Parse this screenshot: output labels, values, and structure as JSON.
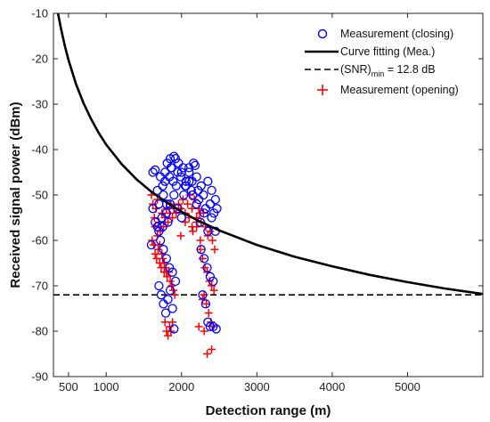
{
  "chart_data": {
    "type": "scatter",
    "xlabel": "Detection range (m)",
    "ylabel": "Received signal power (dBm)",
    "xlim": [
      300,
      6000
    ],
    "ylim": [
      -90,
      -10
    ],
    "xticks": [
      500,
      1000,
      2000,
      3000,
      4000,
      5000
    ],
    "yticks": [
      -10,
      -20,
      -30,
      -40,
      -50,
      -60,
      -70,
      -80,
      -90
    ],
    "legend_position": "top-right",
    "legend": [
      {
        "key": "closing",
        "label": "Measurement (closing)",
        "marker": "circle",
        "color": "#0000ff"
      },
      {
        "key": "fit",
        "label": "Curve fitting (Mea.)",
        "line": "solid",
        "color": "#000000"
      },
      {
        "key": "snr",
        "label_main": "(SNR)",
        "label_sub": "min",
        "label_rest": " = 12.8 dB",
        "line": "dashed",
        "color": "#000000"
      },
      {
        "key": "opening",
        "label": "Measurement (opening)",
        "marker": "plus",
        "color": "#ff0000"
      }
    ],
    "series": {
      "curve_fit": {
        "x": [
          360,
          400,
          450,
          500,
          600,
          700,
          800,
          900,
          1000,
          1200,
          1400,
          1600,
          1800,
          2000,
          2200,
          2500,
          3000,
          3500,
          4000,
          4500,
          5000,
          5500,
          6000
        ],
        "y": [
          -10,
          -13.4,
          -17.1,
          -20.3,
          -25.6,
          -29.8,
          -33.3,
          -36.3,
          -38.9,
          -43.1,
          -46.5,
          -49.3,
          -51.6,
          -53.7,
          -55.5,
          -57.8,
          -61.0,
          -63.6,
          -65.7,
          -67.6,
          -69.2,
          -70.6,
          -71.8
        ]
      },
      "snr_min": {
        "y": -72
      },
      "closing": {
        "x": [
          1600,
          1620,
          1650,
          1680,
          1700,
          1720,
          1740,
          1760,
          1780,
          1800,
          1820,
          1850,
          1870,
          1900,
          1930,
          1960,
          2000,
          2030,
          2060,
          2100,
          2130,
          2160,
          2200,
          2230,
          2260,
          2290,
          2320,
          2350,
          2380,
          2400,
          2430,
          2450,
          2470,
          1650,
          1700,
          1750,
          1800,
          1850,
          1900,
          1950,
          2000,
          2050,
          2100,
          2150,
          2200,
          2250,
          2300,
          2350,
          2400,
          2450,
          1620,
          1680,
          1720,
          1760,
          1800,
          1840,
          1880,
          1920,
          2260,
          2300,
          2340,
          2380,
          2420,
          1700,
          1730,
          1760,
          1790,
          1820,
          1850,
          1880,
          1900,
          2280,
          2320,
          2350,
          2380,
          2420,
          2460,
          1750,
          1780,
          1810,
          1840,
          1860,
          1890,
          1920,
          1950,
          1990,
          2020,
          2060,
          2100,
          2140,
          2180,
          2220
        ],
        "y": [
          -61,
          -45,
          -44.5,
          -49,
          -52,
          -46,
          -55,
          -50,
          -47,
          -52,
          -56,
          -42,
          -44,
          -41.5,
          -48,
          -43,
          -45,
          -50,
          -47,
          -44,
          -49,
          -43,
          -46,
          -51,
          -48,
          -50,
          -53,
          -47,
          -52,
          -49,
          -54,
          -51,
          -53,
          -56,
          -58,
          -57,
          -54,
          -52,
          -50,
          -53,
          -55,
          -48,
          -47,
          -50,
          -52,
          -56,
          -54,
          -58,
          -55,
          -58,
          -53,
          -57,
          -60,
          -62,
          -64,
          -66,
          -67,
          -69,
          -62,
          -64,
          -66,
          -68,
          -69,
          -70,
          -72,
          -74,
          -76,
          -73,
          -71,
          -75,
          -79.5,
          -72,
          -74,
          -78,
          -79,
          -79,
          -79.5,
          -48,
          -45,
          -43,
          -46,
          -44,
          -47,
          -42,
          -45,
          -46,
          -44,
          -48,
          -45,
          -47,
          -43.5,
          -49
        ]
      },
      "opening": {
        "x": [
          1600,
          1620,
          1640,
          1660,
          1680,
          1700,
          1720,
          1740,
          1760,
          1780,
          1800,
          1820,
          1840,
          1860,
          1880,
          1900,
          1930,
          1960,
          1990,
          2020,
          2050,
          2080,
          2110,
          2140,
          2170,
          2200,
          2230,
          2260,
          2290,
          2320,
          2350,
          2380,
          2410,
          2440,
          1610,
          1630,
          1650,
          1670,
          1690,
          1710,
          1730,
          1750,
          1770,
          1790,
          1810,
          1830,
          1850,
          1870,
          1890,
          1910,
          2250,
          2280,
          2310,
          2340,
          2370,
          2400,
          2430,
          1780,
          1800,
          1820,
          1840,
          1860,
          1880,
          2300,
          2330,
          2360,
          2390,
          2420,
          1650,
          1680,
          1710,
          1740,
          1770,
          1800,
          2150,
          2200,
          2250,
          2280,
          2300,
          1990,
          2050,
          2100,
          2140,
          2200,
          2240,
          2400,
          2340,
          2230
        ],
        "y": [
          -50,
          -52,
          -55,
          -53,
          -51,
          -56,
          -58,
          -54,
          -57,
          -55,
          -53,
          -56,
          -54,
          -52,
          -55,
          -53,
          -54,
          -52,
          -53,
          -51,
          -54,
          -52,
          -50,
          -53,
          -51,
          -55,
          -53,
          -56,
          -54,
          -57,
          -59,
          -58,
          -60,
          -62,
          -60,
          -61,
          -63,
          -64,
          -62,
          -65,
          -66,
          -64,
          -67,
          -66,
          -68,
          -67,
          -69,
          -70,
          -71,
          -72,
          -62,
          -64,
          -66,
          -67,
          -69,
          -70,
          -71,
          -78,
          -80,
          -81,
          -79,
          -80,
          -78,
          -72,
          -74,
          -76,
          -78,
          -79,
          -57,
          -59,
          -61,
          -63,
          -65,
          -67,
          -58,
          -57,
          -60,
          -73,
          -80,
          -59,
          -56,
          -55,
          -57,
          -56,
          -54,
          -84,
          -85,
          -79
        ]
      }
    }
  }
}
